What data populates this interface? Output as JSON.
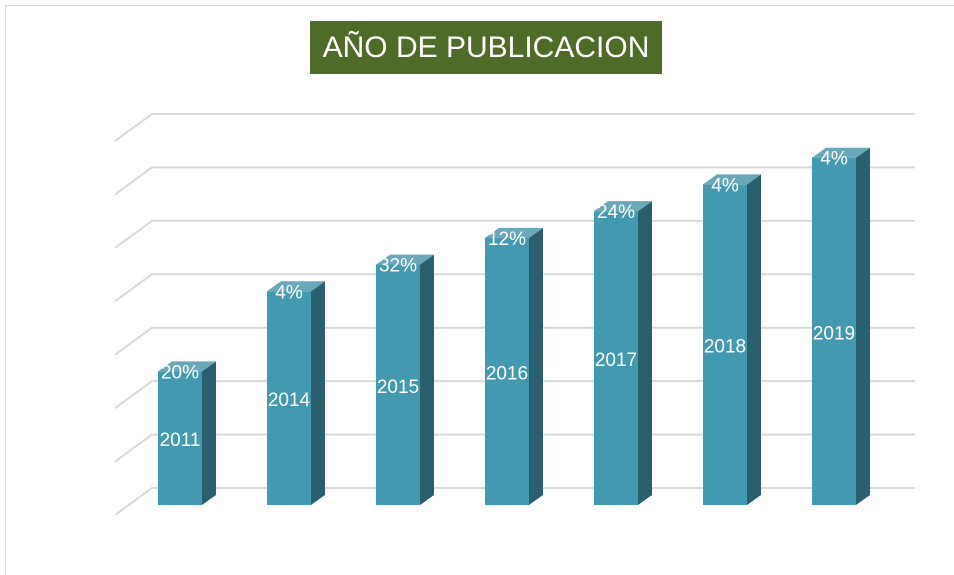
{
  "chart_data": {
    "type": "bar3d",
    "title": "AÑO DE PUBLICACION",
    "values": [
      2011,
      2014,
      2015,
      2016,
      2017,
      2018,
      2019
    ],
    "percent_labels": [
      "20%",
      "4%",
      "32%",
      "12%",
      "24%",
      "4%",
      "4%"
    ],
    "color": "#4399b0",
    "ylim": [
      2006,
      2020
    ],
    "yticks": [
      2006,
      2008,
      2010,
      2012,
      2014,
      2016,
      2018,
      2020
    ],
    "grid": true
  }
}
